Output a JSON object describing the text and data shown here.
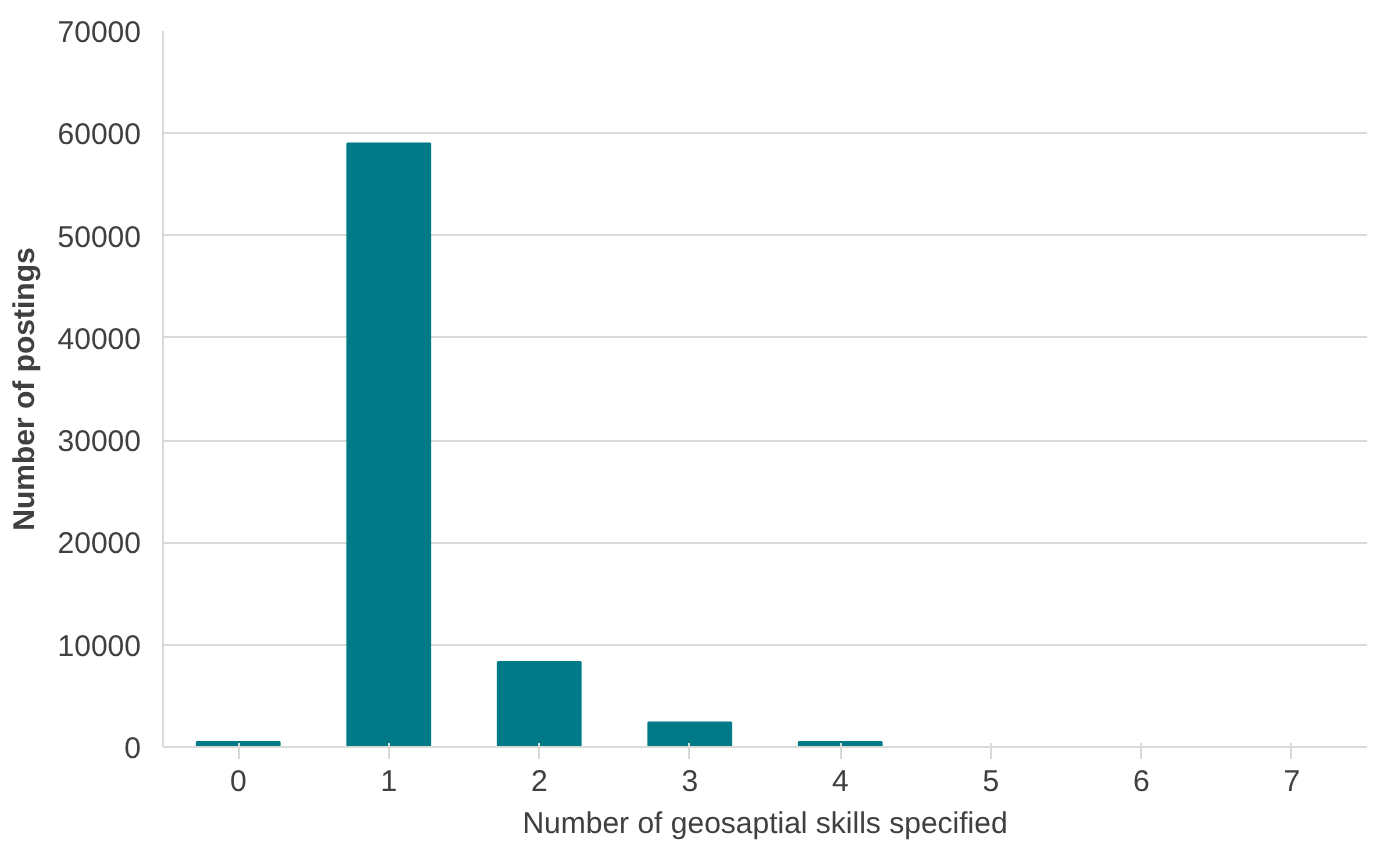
{
  "chart_data": {
    "type": "bar",
    "xlabel": "Number of geosaptial skills specified",
    "ylabel": "Number of postings",
    "categories": [
      "0",
      "1",
      "2",
      "3",
      "4",
      "5",
      "6",
      "7"
    ],
    "values": [
      500,
      59000,
      8300,
      2400,
      500,
      0,
      0,
      0
    ],
    "color": "#007a87",
    "ylim": [
      0,
      70000
    ],
    "yticks": [
      0,
      10000,
      20000,
      30000,
      40000,
      50000,
      60000,
      70000
    ],
    "grid": "y"
  }
}
